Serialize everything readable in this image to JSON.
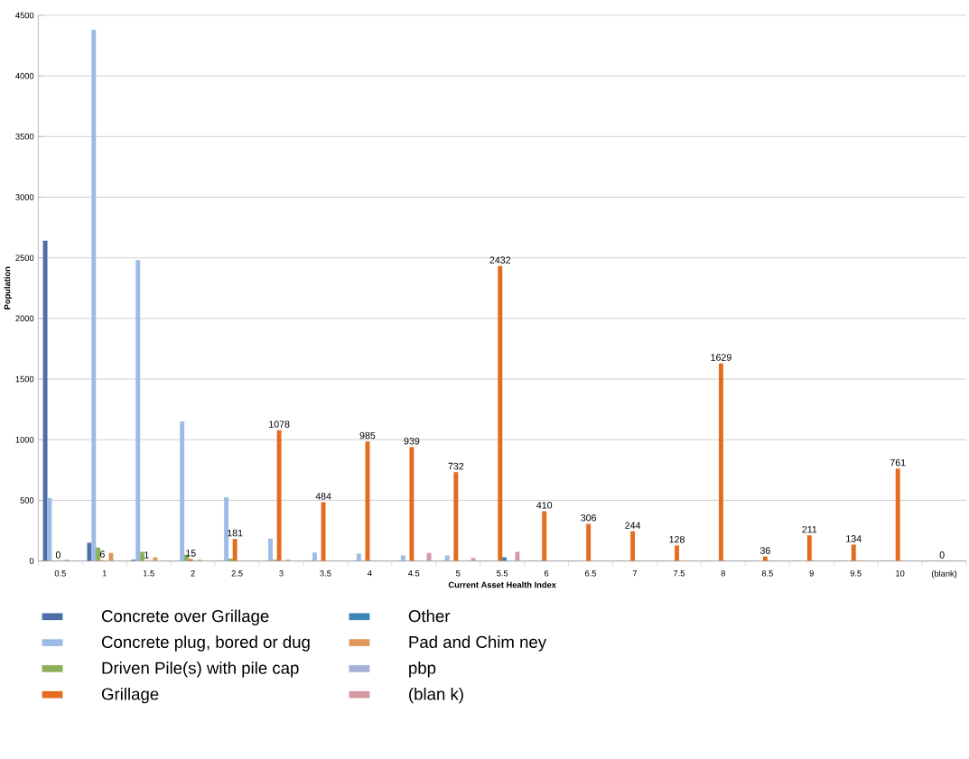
{
  "chart_data": {
    "type": "bar",
    "xlabel": "Current Asset Health Index",
    "ylabel": "Population",
    "categories": [
      "0.5",
      "1",
      "1.5",
      "2",
      "2.5",
      "3",
      "3.5",
      "4",
      "4.5",
      "5",
      "5.5",
      "6",
      "6.5",
      "7",
      "7.5",
      "8",
      "8.5",
      "9",
      "9.5",
      "10",
      "(blank)"
    ],
    "series": [
      {
        "name": "Concrete over Grillage",
        "color": "#4f6fa8",
        "values": [
          2640,
          150,
          10,
          0,
          0,
          0,
          0,
          0,
          0,
          0,
          0,
          0,
          0,
          0,
          0,
          0,
          0,
          0,
          0,
          0,
          0
        ]
      },
      {
        "name": "Concrete plug, bored or dug",
        "color": "#9dbbe6",
        "values": [
          520,
          4380,
          2480,
          1150,
          525,
          185,
          70,
          60,
          45,
          45,
          0,
          0,
          0,
          0,
          0,
          0,
          0,
          0,
          0,
          0,
          0
        ]
      },
      {
        "name": "Driven Pile(s) with pile cap",
        "color": "#8bb05a",
        "values": [
          0,
          110,
          75,
          50,
          20,
          10,
          0,
          0,
          0,
          0,
          0,
          0,
          0,
          0,
          0,
          0,
          0,
          0,
          0,
          0,
          0
        ]
      },
      {
        "name": "Grillage",
        "color": "#e46c1e",
        "values": [
          0,
          6,
          1,
          15,
          181,
          1078,
          484,
          985,
          939,
          732,
          2432,
          410,
          306,
          244,
          128,
          1629,
          36,
          211,
          134,
          761,
          0
        ],
        "value_labels": [
          "0",
          "6",
          "1",
          "15",
          "181",
          "1078",
          "484",
          "985",
          "939",
          "732",
          "2432",
          "410",
          "306",
          "244",
          "128",
          "1629",
          "36",
          "211",
          "134",
          "761",
          "0"
        ]
      },
      {
        "name": "Other",
        "color": "#3f86b8",
        "values": [
          0,
          0,
          0,
          0,
          0,
          0,
          0,
          0,
          0,
          0,
          30,
          null,
          0,
          0,
          0,
          0,
          0,
          0,
          0,
          0,
          0
        ]
      },
      {
        "name": "Pad and Chim ney",
        "color": "#e0975a",
        "values": [
          10,
          65,
          30,
          10,
          0,
          10,
          0,
          0,
          0,
          0,
          0,
          0,
          0,
          0,
          0,
          0,
          0,
          0,
          0,
          0,
          0
        ]
      },
      {
        "name": "pbp",
        "color": "#a6b0d8",
        "values": [
          0,
          0,
          0,
          0,
          0,
          0,
          0,
          0,
          0,
          0,
          0,
          0,
          0,
          0,
          0,
          0,
          0,
          0,
          0,
          0,
          0
        ]
      },
      {
        "name": "(blan k)",
        "color": "#d49aa4",
        "values": [
          0,
          0,
          0,
          0,
          0,
          0,
          0,
          0,
          65,
          25,
          75,
          0,
          0,
          0,
          0,
          0,
          0,
          0,
          0,
          0,
          0
        ]
      }
    ],
    "ylim": [
      0,
      4500
    ],
    "yticks": [
      0,
      500,
      1000,
      1500,
      2000,
      2500,
      3000,
      3500,
      4000,
      4500
    ],
    "grid": "y",
    "legend": "bottom"
  }
}
